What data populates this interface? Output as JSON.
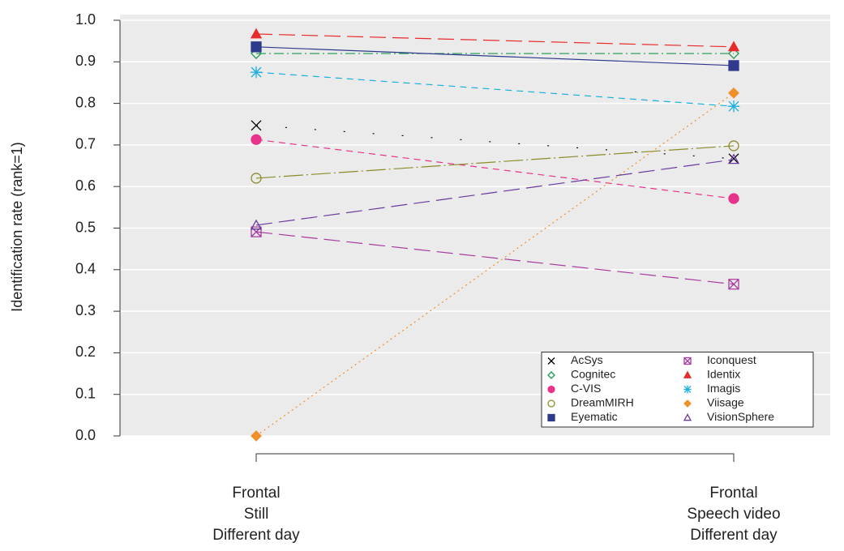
{
  "chart_data": {
    "type": "line",
    "y_label": "Identification rate (rank=1)",
    "categories": [
      [
        "Frontal",
        "Still",
        "Different day"
      ],
      [
        "Frontal",
        "Speech video",
        "Different day"
      ]
    ],
    "ylim": [
      0,
      1
    ],
    "yticks": [
      {
        "value": 0,
        "label": "0.0"
      },
      0.1,
      0.2,
      0.3,
      0.4,
      0.5,
      0.6,
      0.7,
      0.8,
      0.9,
      {
        "value": 1,
        "label": "1.0"
      }
    ],
    "grid": true,
    "legend": "lower right",
    "series": [
      {
        "name": "AcSys",
        "color": "#000000",
        "marker": "x",
        "dash": "sparse",
        "values": [
          0.747,
          0.667
        ]
      },
      {
        "name": "Cognitec",
        "color": "#1a9a4a",
        "marker": "diamond-open",
        "dash": "dotdash",
        "values": [
          0.92,
          0.92
        ]
      },
      {
        "name": "C-VIS",
        "color": "#e8338a",
        "marker": "circle",
        "dash": "dashed",
        "values": [
          0.713,
          0.571
        ]
      },
      {
        "name": "DreamMIRH",
        "color": "#8c8c2a",
        "marker": "circle-open",
        "dash": "longdot",
        "values": [
          0.62,
          0.698
        ]
      },
      {
        "name": "Eyematic",
        "color": "#2e3a8c",
        "marker": "square",
        "dash": "solid",
        "values": [
          0.936,
          0.891
        ]
      },
      {
        "name": "Iconquest",
        "color": "#a83aa0",
        "marker": "box-x",
        "dash": "longdash",
        "values": [
          0.491,
          0.365
        ]
      },
      {
        "name": "Identix",
        "color": "#e82a2a",
        "marker": "triangle",
        "dash": "longdash",
        "values": [
          0.967,
          0.936
        ]
      },
      {
        "name": "Imagis",
        "color": "#1ab0e0",
        "marker": "asterisk",
        "dash": "dashed",
        "values": [
          0.875,
          0.793
        ]
      },
      {
        "name": "Viisage",
        "color": "#f0902a",
        "marker": "diamond",
        "dash": "dotted",
        "values": [
          0,
          0.825
        ]
      },
      {
        "name": "VisionSphere",
        "color": "#6a3aa0",
        "marker": "triangle-open",
        "dash": "longdash",
        "values": [
          0.507,
          0.665
        ]
      }
    ]
  }
}
